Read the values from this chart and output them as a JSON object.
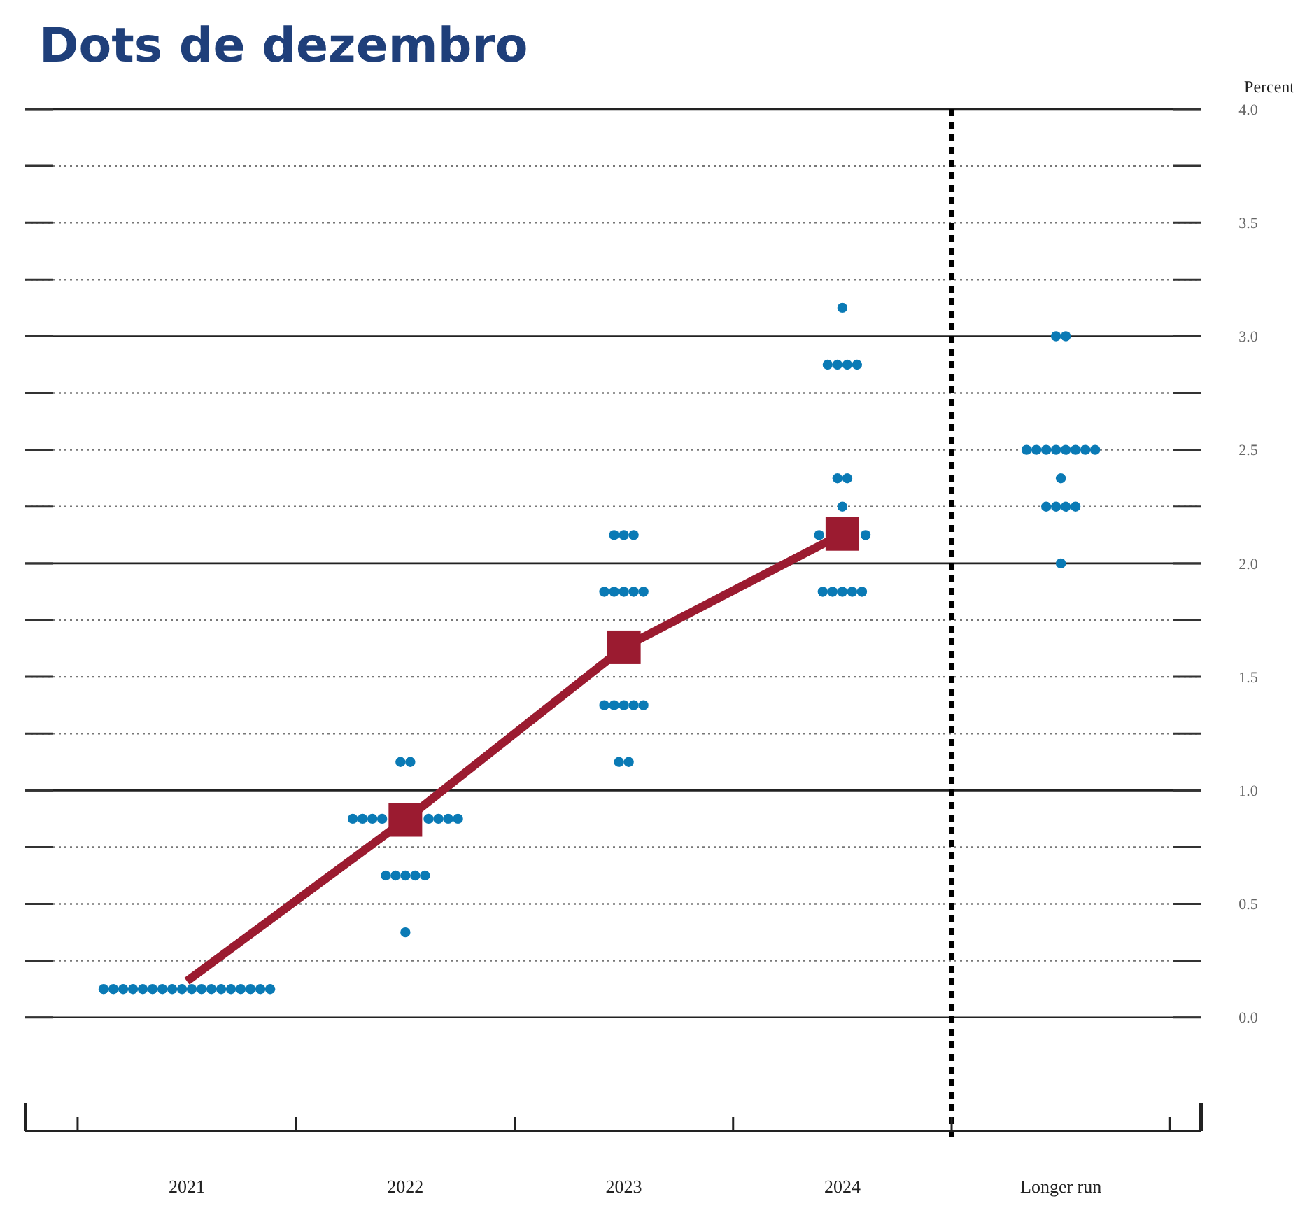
{
  "chart_data": {
    "type": "scatter",
    "title": "Dots de dezembro",
    "ylabel": "Percent",
    "categories": [
      "2021",
      "2022",
      "2023",
      "2024",
      "Longer run"
    ],
    "ylim": [
      -0.5,
      4.0
    ],
    "yticks": [
      {
        "value": 0,
        "label": "0.0"
      },
      {
        "value": 0.25,
        "label": null
      },
      {
        "value": 0.5,
        "label": "0.5"
      },
      {
        "value": 0.75,
        "label": null
      },
      {
        "value": 1,
        "label": "1.0"
      },
      {
        "value": 1.25,
        "label": null
      },
      {
        "value": 1.5,
        "label": "1.5"
      },
      {
        "value": 1.75,
        "label": null
      },
      {
        "value": 2,
        "label": "2.0"
      },
      {
        "value": 2.25,
        "label": null
      },
      {
        "value": 2.5,
        "label": "2.5"
      },
      {
        "value": 2.75,
        "label": null
      },
      {
        "value": 3,
        "label": "3.0"
      },
      {
        "value": 3.25,
        "label": null
      },
      {
        "value": 3.5,
        "label": "3.5"
      },
      {
        "value": 3.75,
        "label": null
      },
      {
        "value": 4,
        "label": "4.0"
      }
    ],
    "grid": "y",
    "series": [
      {
        "color": "#0a7ab5",
        "marker": "circle",
        "values": [
          0.125,
          1.125,
          2.125,
          3.125,
          3.0
        ]
      },
      {
        "color": "#0a7ab5",
        "marker": "circle",
        "values": [
          0.125,
          1.125,
          2.125,
          2.875,
          3.0
        ]
      },
      {
        "color": "#0a7ab5",
        "marker": "circle",
        "values": [
          0.125,
          0.875,
          2.125,
          2.875,
          2.5
        ]
      },
      {
        "color": "#0a7ab5",
        "marker": "circle",
        "values": [
          0.125,
          0.875,
          1.875,
          2.875,
          2.5
        ]
      },
      {
        "color": "#0a7ab5",
        "marker": "circle",
        "values": [
          0.125,
          0.875,
          1.875,
          2.875,
          2.5
        ]
      },
      {
        "color": "#0a7ab5",
        "marker": "circle",
        "values": [
          0.125,
          0.875,
          1.875,
          2.375,
          2.5
        ]
      },
      {
        "color": "#0a7ab5",
        "marker": "circle",
        "values": [
          0.125,
          0.875,
          1.875,
          2.375,
          2.5
        ]
      },
      {
        "color": "#0a7ab5",
        "marker": "circle",
        "values": [
          0.125,
          0.875,
          1.875,
          2.25,
          2.5
        ]
      },
      {
        "color": "#0a7ab5",
        "marker": "circle",
        "values": [
          0.125,
          0.875,
          1.375,
          2.125,
          2.5
        ]
      },
      {
        "color": "#0a7ab5",
        "marker": "circle",
        "values": [
          0.125,
          0.875,
          1.375,
          2.125,
          2.5
        ]
      },
      {
        "color": "#0a7ab5",
        "marker": "circle",
        "values": [
          0.125,
          0.625,
          1.375,
          1.875,
          2.375
        ]
      },
      {
        "color": "#0a7ab5",
        "marker": "circle",
        "values": [
          0.125,
          0.625,
          1.375,
          1.875,
          2.25
        ]
      },
      {
        "color": "#0a7ab5",
        "marker": "circle",
        "values": [
          0.125,
          0.625,
          1.375,
          1.875,
          2.25
        ]
      },
      {
        "color": "#0a7ab5",
        "marker": "circle",
        "values": [
          0.125,
          0.625,
          1.125,
          1.875,
          2.25
        ]
      },
      {
        "color": "#0a7ab5",
        "marker": "circle",
        "values": [
          0.125,
          0.625,
          1.125,
          1.875,
          2.25
        ]
      },
      {
        "color": "#0a7ab5",
        "marker": "circle",
        "values": [
          0.125,
          0.375,
          null,
          null,
          2.0
        ]
      },
      {
        "color": "#0a7ab5",
        "marker": "circle",
        "values": [
          0.125,
          null,
          null,
          null,
          null
        ]
      },
      {
        "color": "#0a7ab5",
        "marker": "circle",
        "values": [
          0.125,
          null,
          null,
          null,
          null
        ]
      },
      {
        "type": "line",
        "color": "#9b1b30",
        "marker": "none",
        "line_style": "solid",
        "values": [
          0.16,
          0.87,
          1.63,
          2.13,
          null
        ]
      },
      {
        "color": "#9b1b30",
        "marker": "square",
        "values": [
          null,
          0.87,
          1.63,
          2.13,
          null
        ]
      }
    ]
  }
}
